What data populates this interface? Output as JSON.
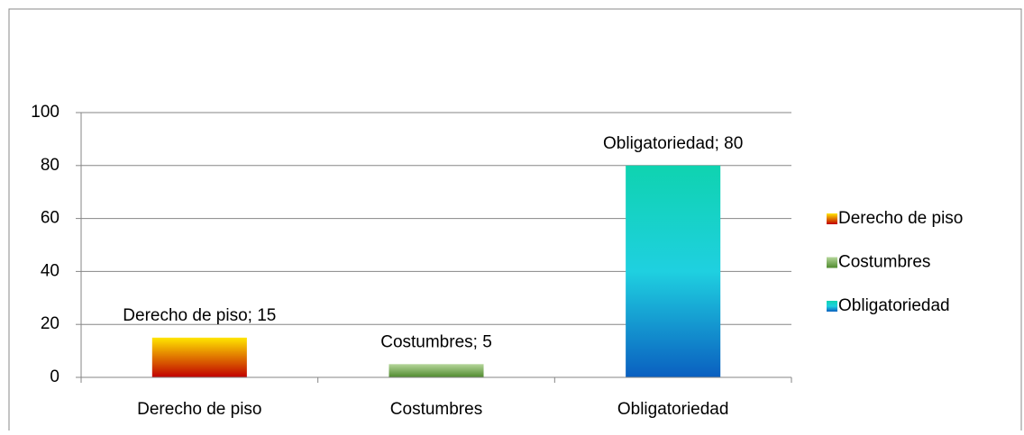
{
  "chart_data": {
    "type": "bar",
    "categories": [
      "Derecho de piso",
      "Costumbres",
      "Obligatoriedad"
    ],
    "series": [
      {
        "name": "Derecho de piso",
        "color": [
          "#ffe600",
          "#c00000"
        ],
        "values": [
          15,
          null,
          null
        ],
        "value_labels": [
          "Derecho de piso; 15",
          null,
          null
        ]
      },
      {
        "name": "Costumbres",
        "color": [
          "#b5d69a",
          "#4f8a2e"
        ],
        "values": [
          null,
          5,
          null
        ],
        "value_labels": [
          null,
          "Costumbres; 5",
          null
        ]
      },
      {
        "name": "Obligatoriedad",
        "color": [
          "#0fd3b0",
          "#1fd0e0",
          "#0a5fc0"
        ],
        "values": [
          null,
          null,
          80
        ],
        "value_labels": [
          null,
          null,
          "Obligatoriedad; 80"
        ]
      }
    ],
    "ylim": [
      0,
      100
    ],
    "yticks": [
      0,
      20,
      40,
      60,
      80,
      100
    ],
    "grid": true,
    "legend": "right"
  }
}
